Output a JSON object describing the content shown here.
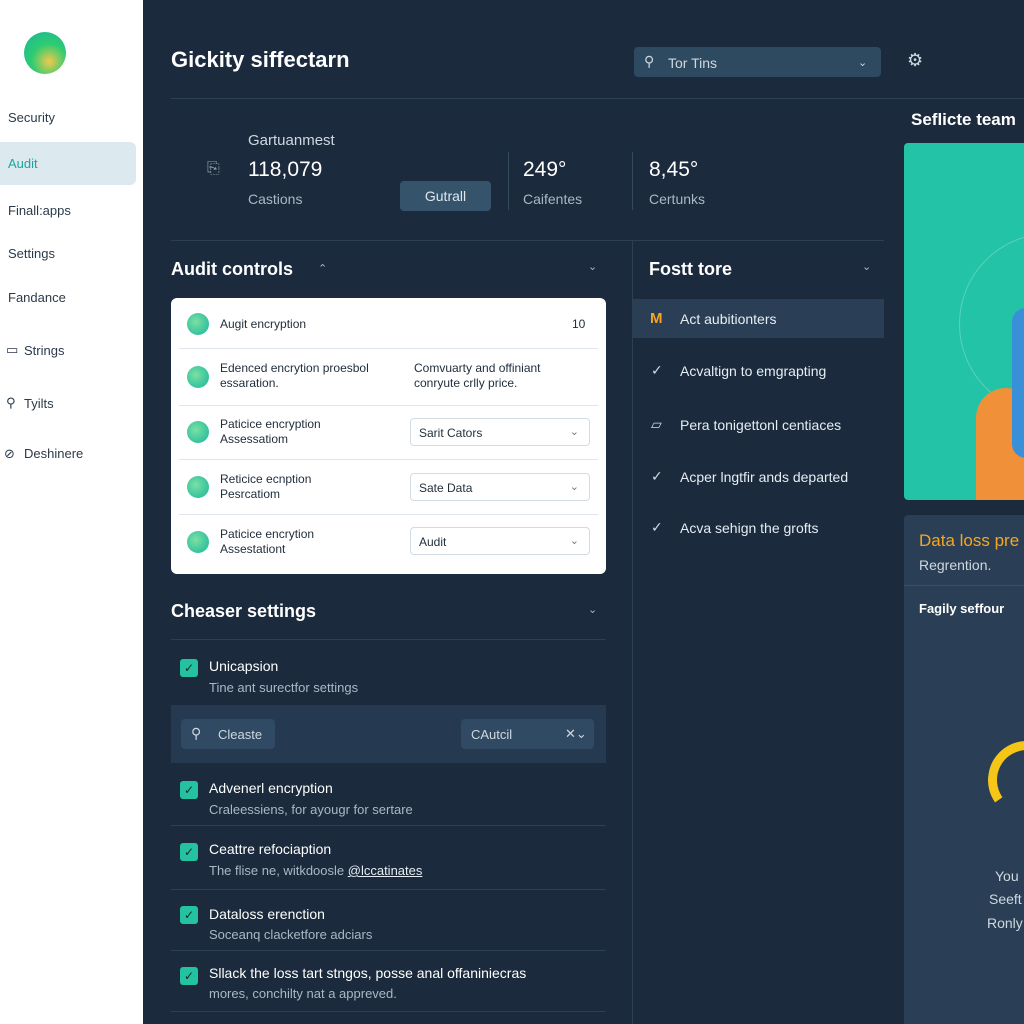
{
  "sidebar": {
    "nav": [
      "Security",
      "Audit",
      "Finall:apps",
      "Settings",
      "Fandance",
      "Strings",
      "Tyilts",
      "Deshinere"
    ]
  },
  "header": {
    "title": "Gickity siffectarn",
    "search": "Tor Tins"
  },
  "stats": {
    "group_label": "Gartuanmest",
    "button": "Gutrall",
    "items": [
      {
        "value": "118,079",
        "label": "Castions"
      },
      {
        "value": "249°",
        "label": "Caifentes"
      },
      {
        "value": "8,45°",
        "label": "Certunks"
      }
    ]
  },
  "audit_controls": {
    "title": "Audit controls",
    "rows": [
      {
        "label": "Augit encryption",
        "value": "10"
      },
      {
        "label": "Edenced encrytion proesbol essaration.",
        "detail": "Comvuarty and offiniant conryute crlly price."
      },
      {
        "label": "Paticice encryption Assessatiom",
        "select": "Sarit Cators"
      },
      {
        "label": "Reticice ecnption Pesrcatiom",
        "select": "Sate Data"
      },
      {
        "label": "Paticice encrytion Assestationt",
        "select": "Audit"
      }
    ]
  },
  "chooser_settings": {
    "title": "Cheaser settings",
    "search": "Cleaste",
    "filter": "CAutcil",
    "items": [
      {
        "title": "Unicapsion",
        "subtitle": "Tine ant surectfor settings"
      },
      {
        "title": "Advenerl encryption",
        "subtitle": "Craleessiens, for ayougr for sertare"
      },
      {
        "title": "Ceattre refociaption",
        "subtitle": "The flise ne, witkdoosle",
        "link": "@lccatinates"
      },
      {
        "title": "Dataloss erenction",
        "subtitle": "Soceanq clacketfore adciars"
      },
      {
        "title": "Sllack the loss tart stngos, posse anal offaniniecras",
        "subtitle": "mores, conchilty nat a appreved."
      }
    ]
  },
  "feature_list": {
    "title": "Fostt tore",
    "items": [
      "Act aubitionters",
      "Acvaltign to emgrapting",
      "Pera tonigettonl centiaces",
      "Acper lngtfir ands departed",
      "Acva sehign the grofts"
    ]
  },
  "right_panel": {
    "title": "Seflicte team",
    "card_title": "Data loss pre",
    "card_subtitle": "Regrention.",
    "card_label": "Fagily seffour",
    "lines": [
      "You",
      "Seeft",
      "Ronly"
    ]
  }
}
